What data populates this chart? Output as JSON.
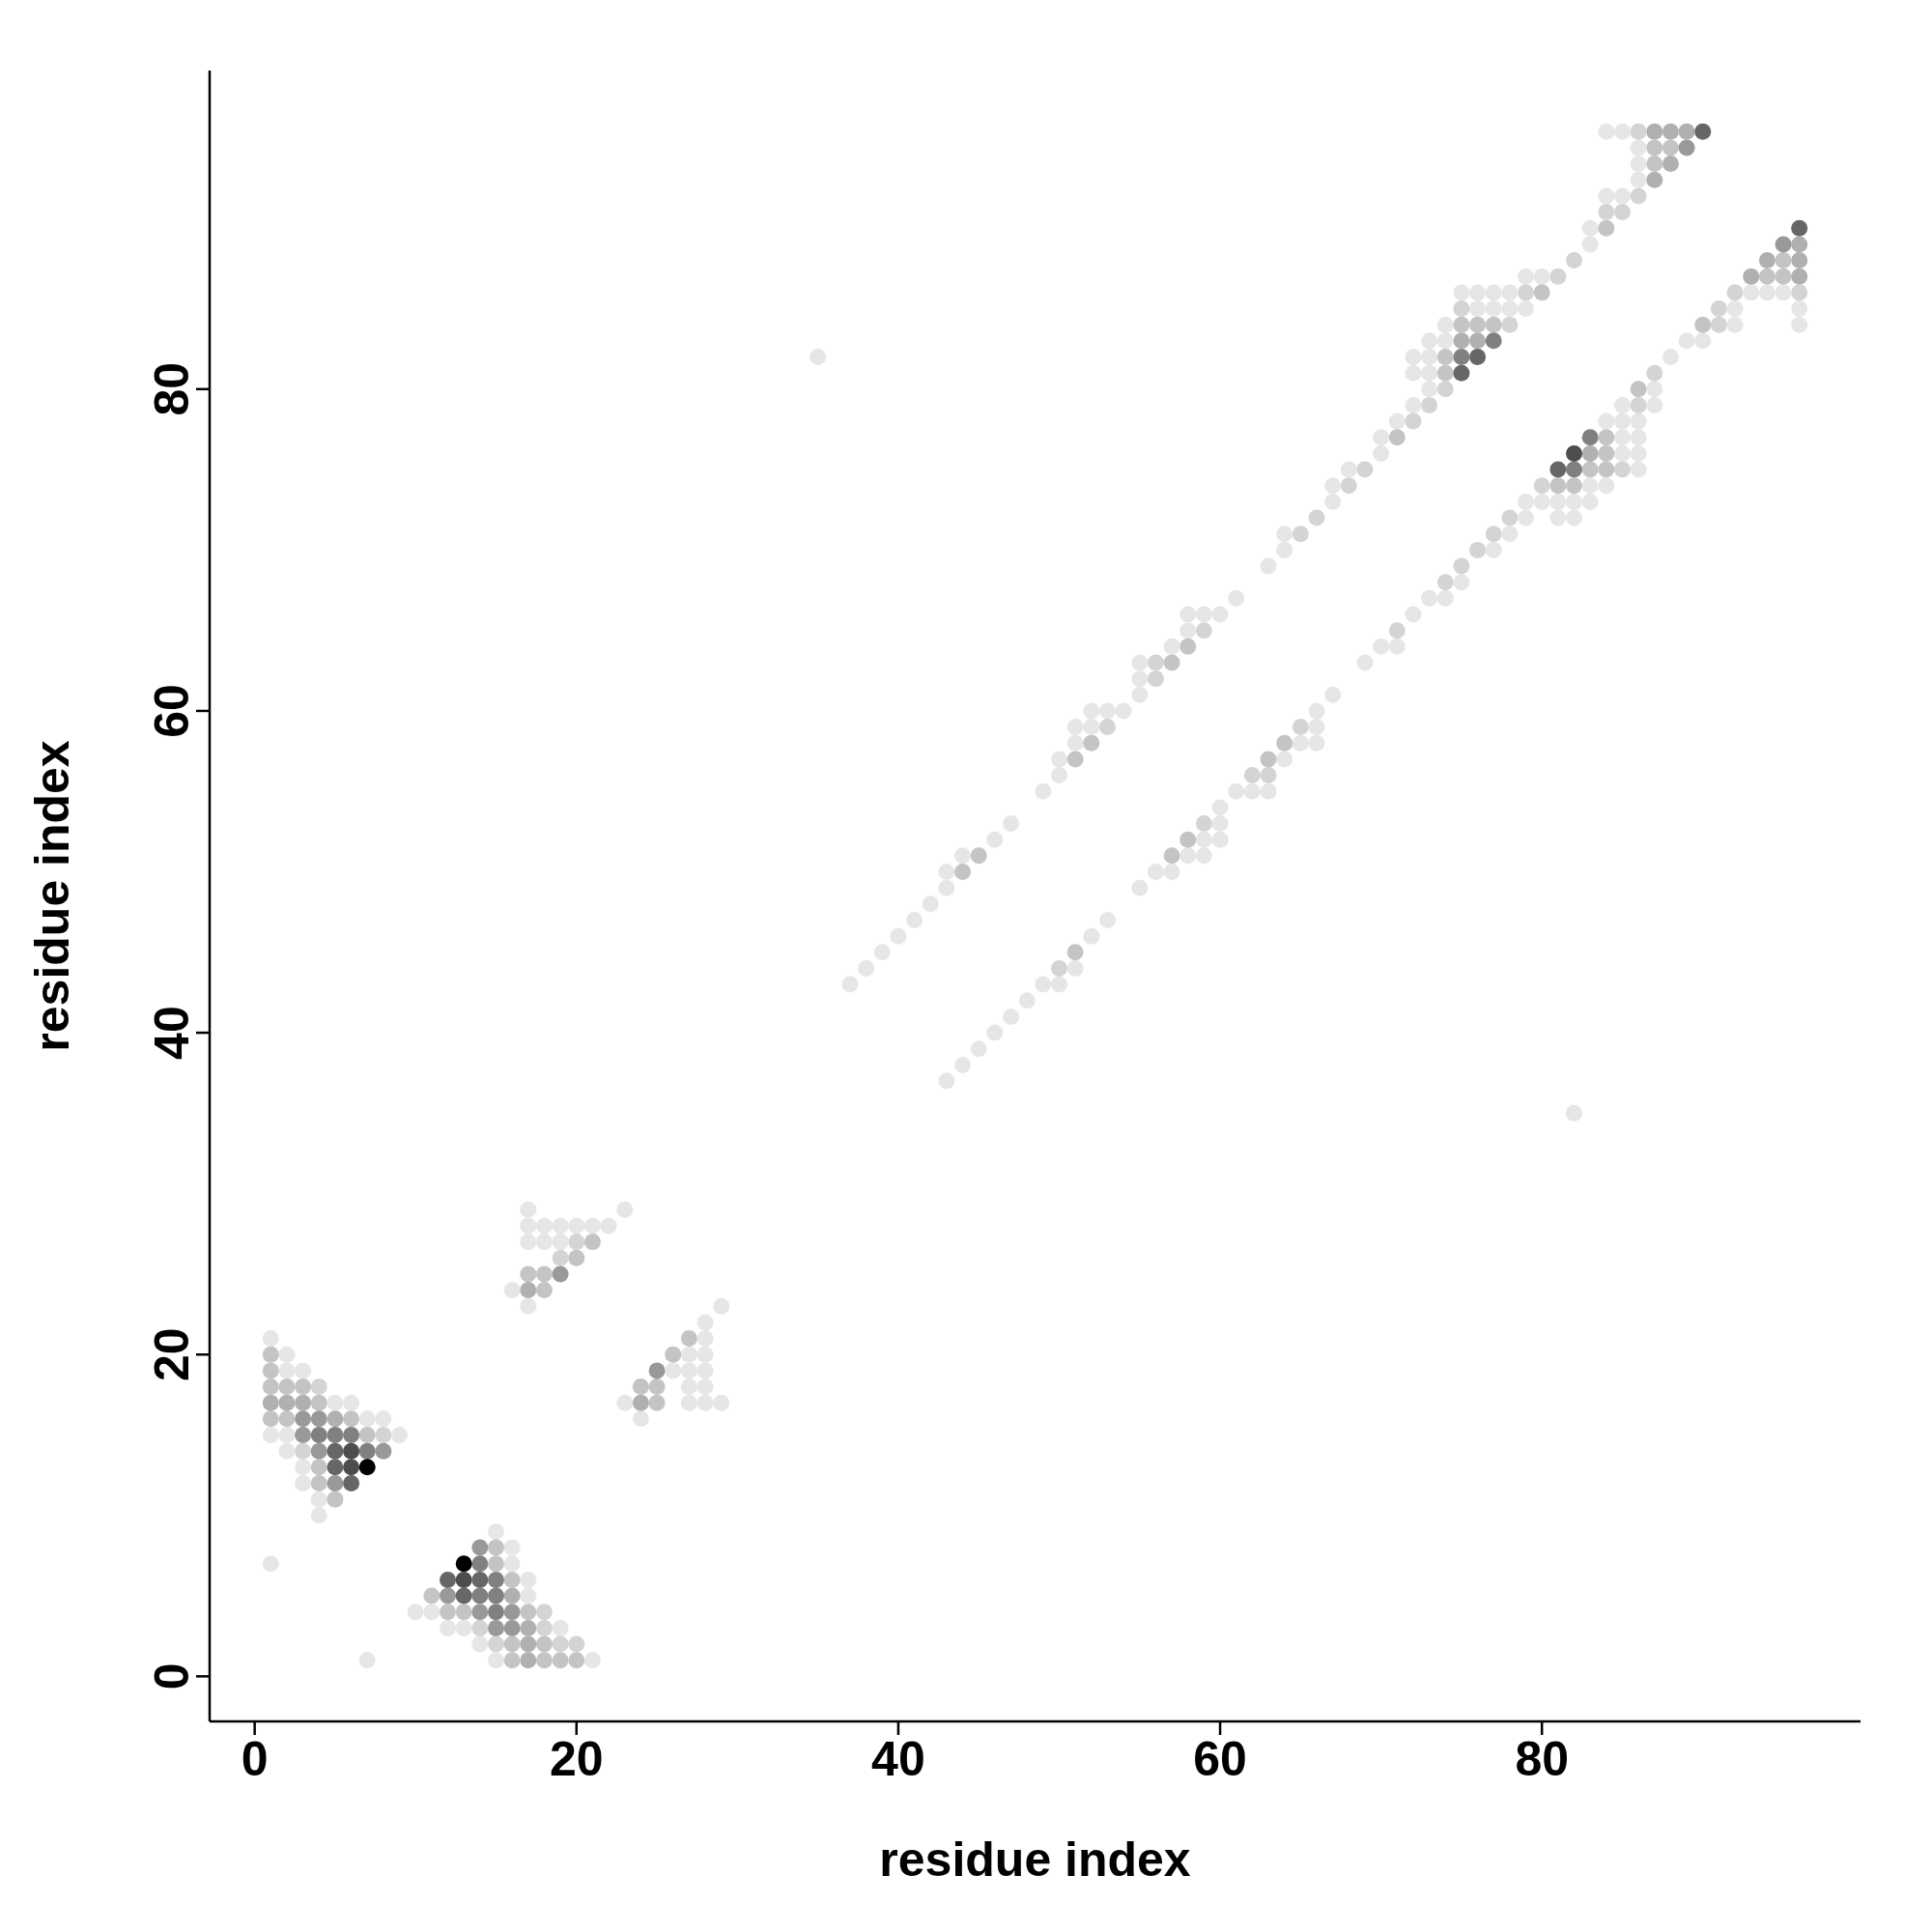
{
  "chart_data": {
    "type": "scatter",
    "xlabel": "residue index",
    "ylabel": "residue index",
    "marker": "circle",
    "xlim": [
      -2.8,
      99.8
    ],
    "ylim": [
      -2.8,
      99.8
    ],
    "xticks": [
      0,
      20,
      40,
      60,
      80
    ],
    "yticks": [
      0,
      20,
      40,
      60,
      80
    ],
    "series": [
      {
        "color": "#e6e6e6",
        "x": [
          1,
          2,
          2,
          3,
          5,
          6,
          7,
          8,
          1,
          2,
          9,
          2,
          3,
          3,
          4,
          4,
          1,
          7,
          15,
          16,
          16,
          17,
          17,
          10,
          11,
          12,
          13,
          19,
          14,
          15,
          21,
          17,
          23,
          17,
          18,
          19,
          20,
          21,
          22,
          17,
          18,
          19,
          16,
          17,
          29,
          28,
          28,
          27,
          28,
          26,
          27,
          28,
          27,
          28,
          23,
          27,
          28,
          29,
          24,
          35,
          82,
          37,
          38,
          39,
          40,
          41,
          42,
          43,
          43,
          44,
          46,
          47,
          49,
          50,
          50,
          51,
          51,
          52,
          52,
          53,
          54,
          55,
          55,
          55,
          57,
          58,
          58,
          59,
          60,
          61,
          63,
          64,
          64,
          67,
          67,
          68,
          70,
          70,
          71,
          72,
          73,
          72,
          73,
          72,
          73,
          73,
          74,
          74,
          76,
          77,
          78,
          79,
          75,
          76,
          77,
          78,
          79,
          80,
          83,
          83,
          84,
          85,
          86,
          86,
          86,
          84,
          85,
          43,
          44,
          45,
          46,
          47,
          48,
          49,
          50,
          51,
          52,
          53,
          55,
          56,
          57,
          58,
          59,
          59,
          60,
          60,
          60,
          61,
          62,
          63,
          64,
          65,
          66,
          66,
          66,
          67,
          69,
          70,
          71,
          72,
          73,
          74,
          75,
          77,
          78,
          79,
          79,
          80,
          81,
          82,
          83,
          81,
          82,
          83,
          84,
          86,
          85,
          86,
          85,
          86,
          84,
          85,
          86,
          85,
          87,
          87,
          88,
          89,
          90,
          92,
          92,
          93,
          94,
          95,
          96,
          96
        ],
        "values": [
          21,
          20,
          19,
          19,
          17,
          17,
          16,
          16,
          15,
          15,
          15,
          14,
          13,
          12,
          11,
          10,
          7,
          1,
          9,
          8,
          7,
          6,
          5,
          4,
          4,
          3,
          3,
          3,
          2,
          1,
          1,
          29,
          29,
          28,
          28,
          28,
          28,
          28,
          28,
          27,
          27,
          27,
          24,
          23,
          23,
          22,
          21,
          20,
          20,
          19,
          19,
          19,
          18,
          18,
          17,
          17,
          17,
          17,
          16,
          82,
          35,
          43,
          44,
          45,
          46,
          47,
          48,
          49,
          50,
          51,
          52,
          53,
          55,
          56,
          57,
          58,
          59,
          59,
          60,
          60,
          60,
          61,
          62,
          63,
          64,
          65,
          66,
          66,
          66,
          67,
          69,
          70,
          71,
          73,
          74,
          75,
          76,
          77,
          78,
          79,
          80,
          81,
          81,
          82,
          82,
          83,
          83,
          84,
          85,
          85,
          85,
          85,
          86,
          86,
          86,
          86,
          87,
          87,
          89,
          90,
          92,
          92,
          93,
          94,
          95,
          96,
          96,
          37,
          38,
          39,
          40,
          41,
          42,
          43,
          43,
          44,
          46,
          47,
          49,
          50,
          50,
          51,
          51,
          52,
          52,
          53,
          54,
          55,
          55,
          55,
          57,
          58,
          58,
          59,
          60,
          61,
          63,
          64,
          64,
          66,
          67,
          67,
          68,
          70,
          71,
          72,
          73,
          73,
          73,
          73,
          73,
          72,
          72,
          74,
          74,
          75,
          76,
          76,
          77,
          77,
          78,
          78,
          78,
          79,
          79,
          80,
          82,
          83,
          83,
          84,
          85,
          86,
          86,
          86,
          85,
          84
        ]
      },
      {
        "color": "#d4d4d4",
        "x": [
          4,
          8,
          3,
          18,
          14,
          18,
          15,
          19,
          20,
          20,
          19,
          53,
          56,
          56,
          59,
          65,
          66,
          68,
          69,
          72,
          73,
          74,
          50,
          59,
          62,
          63,
          65,
          71,
          74,
          75,
          76,
          77,
          78,
          80,
          85,
          86,
          87,
          91,
          91,
          92,
          96,
          78,
          75,
          79,
          81,
          82,
          84,
          85,
          86,
          86
        ],
        "values": [
          18,
          15,
          14,
          4,
          3,
          3,
          2,
          2,
          2,
          27,
          26,
          59,
          62,
          63,
          65,
          71,
          72,
          74,
          75,
          78,
          79,
          80,
          44,
          53,
          56,
          56,
          59,
          65,
          68,
          69,
          70,
          71,
          72,
          74,
          75,
          79,
          81,
          84,
          85,
          86,
          86,
          84,
          85,
          86,
          87,
          88,
          91,
          91,
          92,
          96
        ]
      },
      {
        "color": "#c4c4c4",
        "x": [
          1,
          1,
          1,
          2,
          3,
          4,
          1,
          2,
          6,
          7,
          4,
          4,
          5,
          15,
          15,
          16,
          11,
          12,
          13,
          17,
          16,
          18,
          16,
          18,
          19,
          20,
          21,
          20,
          17,
          18,
          18,
          27,
          26,
          24,
          25,
          25,
          44,
          45,
          51,
          52,
          57,
          58,
          71,
          51,
          57,
          58,
          63,
          64,
          81,
          82,
          83,
          84,
          84,
          84,
          86,
          90,
          94,
          95,
          95,
          74,
          74,
          75,
          76,
          77,
          80,
          84,
          87,
          87,
          88
        ],
        "values": [
          20,
          19,
          18,
          18,
          18,
          17,
          16,
          16,
          16,
          15,
          13,
          12,
          11,
          8,
          7,
          6,
          5,
          4,
          4,
          4,
          2,
          2,
          1,
          1,
          1,
          1,
          27,
          26,
          25,
          25,
          24,
          21,
          20,
          18,
          18,
          17,
          50,
          51,
          57,
          58,
          63,
          64,
          77,
          45,
          51,
          52,
          57,
          58,
          74,
          74,
          75,
          75,
          76,
          77,
          80,
          84,
          87,
          87,
          88,
          81,
          82,
          84,
          84,
          84,
          86,
          90,
          94,
          95,
          95
        ]
      },
      {
        "color": "#b0b0b0",
        "x": [
          1,
          2,
          3,
          5,
          16,
          17,
          17,
          17,
          17,
          24,
          83,
          93,
          96,
          94,
          96,
          96,
          75,
          76,
          87,
          88,
          87,
          88,
          89
        ],
        "values": [
          17,
          17,
          17,
          16,
          5,
          3,
          2,
          1,
          24,
          17,
          76,
          87,
          87,
          88,
          88,
          89,
          83,
          83,
          93,
          94,
          96,
          96,
          96
        ]
      },
      {
        "color": "#999999",
        "x": [
          3,
          4,
          3,
          4,
          8,
          5,
          14,
          12,
          14,
          16,
          15,
          16,
          19,
          25,
          95,
          89
        ],
        "values": [
          16,
          16,
          15,
          14,
          14,
          12,
          8,
          5,
          4,
          4,
          3,
          3,
          25,
          19,
          89,
          95
        ]
      },
      {
        "color": "#808080",
        "x": [
          4,
          5,
          6,
          7,
          14,
          15,
          14,
          15,
          15,
          82,
          83,
          75,
          77
        ],
        "values": [
          15,
          15,
          15,
          14,
          7,
          6,
          5,
          5,
          4,
          75,
          77,
          82,
          83
        ]
      },
      {
        "color": "#666666",
        "x": [
          5,
          5,
          6,
          12,
          14,
          13,
          81,
          96,
          75,
          76,
          90
        ],
        "values": [
          14,
          13,
          12,
          6,
          6,
          5,
          75,
          90,
          81,
          82,
          96
        ]
      },
      {
        "color": "#4d4d4d",
        "x": [
          6,
          6,
          13,
          82
        ],
        "values": [
          14,
          13,
          6,
          76
        ]
      },
      {
        "color": "#000000",
        "x": [
          7,
          13
        ],
        "values": [
          13,
          7
        ]
      }
    ]
  }
}
